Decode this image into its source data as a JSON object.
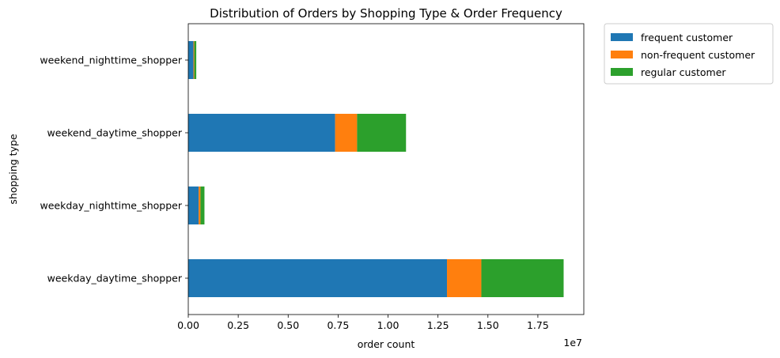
{
  "chart_data": {
    "type": "bar",
    "orientation": "horizontal",
    "stacked": true,
    "title": "Distribution of Orders by Shopping Type & Order Frequency",
    "xlabel": "order count",
    "ylabel": "shopping type",
    "x_offset_label": "1e7",
    "categories": [
      "weekday_daytime_shopper",
      "weekday_nighttime_shopper",
      "weekend_daytime_shopper",
      "weekend_nighttime_shopper"
    ],
    "series": [
      {
        "name": "frequent customer",
        "color": "#1f77b4",
        "values": [
          12950000,
          520000,
          7350000,
          260000
        ]
      },
      {
        "name": "non-frequent customer",
        "color": "#ff7f0e",
        "values": [
          1720000,
          90000,
          1100000,
          40000
        ]
      },
      {
        "name": "regular customer",
        "color": "#2ca02c",
        "values": [
          4120000,
          200000,
          2450000,
          100000
        ]
      }
    ],
    "xlim": [
      0,
      19800000
    ],
    "xticks": [
      0,
      2500000,
      5000000,
      7500000,
      10000000,
      12500000,
      15000000,
      17500000
    ],
    "xtick_labels": [
      "0.00",
      "0.25",
      "0.50",
      "0.75",
      "1.00",
      "1.25",
      "1.50",
      "1.75"
    ],
    "grid": false,
    "legend_position": "outside-top-right"
  }
}
